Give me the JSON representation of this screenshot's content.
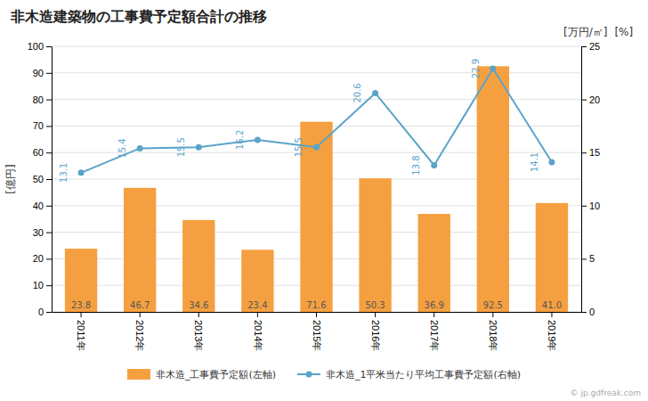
{
  "chart_data": {
    "type": "bar",
    "title": "非木造建築物の工事費予定額合計の推移",
    "categories": [
      "2011年",
      "2012年",
      "2013年",
      "2014年",
      "2015年",
      "2016年",
      "2017年",
      "2018年",
      "2019年"
    ],
    "series": [
      {
        "name": "非木造_工事費予定額(左軸)",
        "type": "bar",
        "color": "#F5A040",
        "values": [
          23.8,
          46.7,
          34.6,
          23.4,
          71.6,
          50.3,
          36.9,
          92.5,
          41.0
        ],
        "value_labels": [
          "23.8",
          "46.7",
          "34.6",
          "23.4",
          "71.6",
          "50.3",
          "36.9",
          "92.5",
          "41.0"
        ]
      },
      {
        "name": "非木造_1平米当たり平均工事費予定額(右軸)",
        "type": "line",
        "axis": "y2",
        "color": "#5BA3C9",
        "marker": "circle",
        "values": [
          13.1,
          15.4,
          15.5,
          16.2,
          15.5,
          20.6,
          13.8,
          22.9,
          14.1
        ]
      }
    ],
    "ylabel": "[億円]",
    "y2label": "[万円/㎡]",
    "annotations": [
      {
        "text": "[%]"
      },
      {
        "text": "© jp.gdfreak.com"
      }
    ],
    "ylim": [
      0,
      100
    ],
    "yticks": [
      0,
      10,
      20,
      30,
      40,
      50,
      60,
      70,
      80,
      90,
      100
    ],
    "y2lim": [
      0,
      25
    ],
    "y2ticks": [
      0,
      5,
      10,
      15,
      20,
      25
    ],
    "grid": true,
    "data_labels": true,
    "legend": "bottom"
  }
}
